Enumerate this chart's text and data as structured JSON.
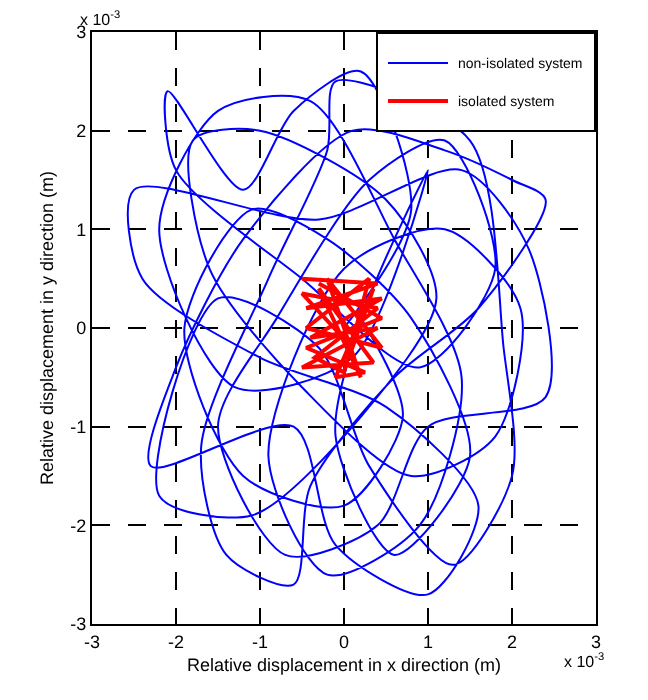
{
  "chart_data": {
    "type": "line",
    "xlabel": "Relative displacement in x direction (m)",
    "ylabel": "Relative displacement in y direction (m)",
    "annotations": [
      "x 10$^{-3}$",
      "x 10$^{-3}$"
    ],
    "xlim": [
      -3,
      3
    ],
    "xticks": [
      -3,
      -2,
      -1,
      0,
      1,
      2,
      3
    ],
    "ylim": [
      -3,
      3
    ],
    "yticks": [
      -3,
      -2,
      -1,
      0,
      1,
      2,
      3
    ],
    "grid": true,
    "legend": "top right",
    "line_style": "solid",
    "marker": "none",
    "series": [
      {
        "name": "non-isolated system",
        "color": "#0000ff",
        "x": [
          0,
          0.8,
          0.2,
          -0.6,
          -1.2,
          -2.1,
          -2.0,
          -0.5,
          0.9,
          1.8,
          1.2,
          0.3,
          -0.8,
          -1.5,
          -0.7,
          0.4,
          1.0,
          2.4,
          2.2,
          1.4,
          -0.3,
          -2.5,
          -2.4,
          -1.0,
          0.5,
          1.6,
          1.0,
          -0.1,
          -0.6,
          -2.3,
          -2.0,
          -1.2,
          0.1,
          1.2,
          2.0,
          2.4,
          1.6,
          0.6,
          -0.4,
          -0.6,
          -1.4,
          -1.7,
          -0.9,
          -0.2,
          -0.1,
          1.5,
          1.9,
          2.0,
          1.3,
          0.3,
          -0.3,
          -1.5,
          -2.2,
          -1.1,
          0.2,
          1.1,
          0.5,
          -1.0,
          -1.8,
          -1.6,
          -0.5,
          0.8,
          1.8,
          2.1,
          1.2,
          0.0,
          -0.9,
          -0.2,
          0.9,
          1.4,
          0.6,
          -0.4,
          -1.5,
          -2.2,
          -1.3,
          0.1,
          1.0,
          0.3,
          -0.1,
          0.6,
          1.5,
          0.8,
          -0.2,
          -1.1,
          -1.9,
          -1.2,
          0.0,
          0.7,
          0.2
        ],
        "values": [
          0,
          1.2,
          2.6,
          2.2,
          1.4,
          2.4,
          1.6,
          0.5,
          -0.4,
          0.6,
          1.9,
          1.5,
          0.1,
          -1.0,
          -2.3,
          -2.0,
          -1.0,
          -0.7,
          0.8,
          1.6,
          1.1,
          1.4,
          0.5,
          -0.3,
          -0.8,
          -1.8,
          -2.7,
          -2.2,
          -1.0,
          -1.4,
          -0.4,
          0.9,
          2.0,
          1.8,
          1.5,
          1.3,
          0.2,
          -0.5,
          -1.6,
          -2.6,
          -2.3,
          -1.2,
          0.5,
          1.8,
          2.5,
          1.9,
          -0.2,
          -1.5,
          -2.4,
          -1.4,
          -0.2,
          0.3,
          -1.7,
          -1.9,
          -0.9,
          0.3,
          1.3,
          2.0,
          1.9,
          0.6,
          -0.6,
          -1.5,
          -1.1,
          0.2,
          1.0,
          0.6,
          -1.3,
          -2.5,
          -2.0,
          -0.5,
          0.9,
          2.3,
          2.2,
          1.0,
          -0.6,
          -0.3,
          1.6,
          0.3,
          -1.1,
          -2.3,
          -1.3,
          0.1,
          0.9,
          1.2,
          0.0,
          -1.5,
          -1.8,
          -0.9,
          0.1
        ]
      },
      {
        "name": "isolated system",
        "color": "#ff0000",
        "x": [
          -0.5,
          0.4,
          -0.45,
          0.45,
          -0.4,
          0.4,
          -0.5,
          0.35,
          -0.3,
          0.2,
          -0.2,
          0.45,
          -0.45,
          0.3,
          0.0,
          -0.35,
          0.4,
          -0.5,
          0.1,
          0.35,
          -0.1,
          0.25,
          -0.45,
          0.45,
          -0.3
        ],
        "values": [
          0.5,
          0.45,
          0.2,
          0.3,
          -0.1,
          0.0,
          -0.4,
          -0.35,
          0.4,
          -0.5,
          0.5,
          -0.2,
          0.0,
          0.5,
          -0.45,
          -0.3,
          0.2,
          0.35,
          -0.2,
          0.4,
          -0.5,
          -0.45,
          -0.2,
          0.1,
          0.45
        ]
      }
    ]
  }
}
